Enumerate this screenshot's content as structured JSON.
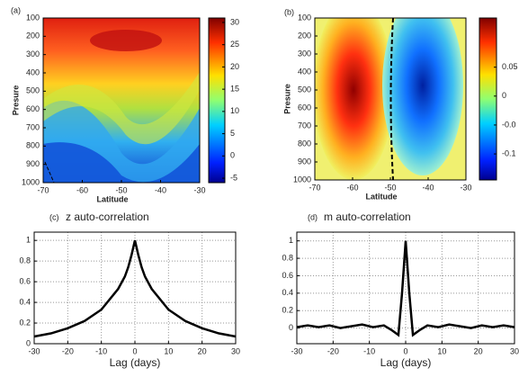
{
  "chart_data": [
    {
      "type": "contour",
      "panel_label": "(a)",
      "xlabel": "Latitude",
      "ylabel": "Presure",
      "xlim": [
        -70,
        -30
      ],
      "xticks": [
        -70,
        -60,
        -50,
        -40,
        -30
      ],
      "ylim": [
        1000,
        100
      ],
      "yticks": [
        100,
        200,
        300,
        400,
        500,
        600,
        700,
        800,
        900,
        1000
      ],
      "colorbar_lim": [
        -6,
        31
      ],
      "colorbar_ticks": [
        -5,
        0,
        5,
        10,
        15,
        20,
        25,
        30
      ]
    },
    {
      "type": "contour",
      "panel_label": "(b)",
      "xlabel": "Latitude",
      "ylabel": "Presure",
      "xlim": [
        -70,
        -30
      ],
      "xticks": [
        -70,
        -60,
        -50,
        -40,
        -30
      ],
      "ylim": [
        1000,
        100
      ],
      "yticks": [
        100,
        200,
        300,
        400,
        500,
        600,
        700,
        800,
        900,
        1000
      ],
      "colorbar_lim": [
        -0.145,
        0.135
      ],
      "colorbar_ticks": [
        0.05,
        0,
        {
          "value": -0.05,
          "label": "-0.0"
        },
        -0.1
      ]
    },
    {
      "type": "line",
      "panel_label": "(c)",
      "title": "z auto-correlation",
      "xlabel": "Lag (days)",
      "xlim": [
        -30,
        30
      ],
      "xticks": [
        -30,
        -20,
        -10,
        0,
        10,
        20,
        30
      ],
      "ylim": [
        0,
        1.08
      ],
      "yticks": [
        0,
        0.2,
        0.4,
        0.6,
        0.8,
        1
      ],
      "grid": true,
      "x": [
        -30,
        -25,
        -20,
        -15,
        -10,
        -5,
        -3,
        -2,
        -1,
        0,
        1,
        2,
        3,
        5,
        10,
        15,
        20,
        25,
        30
      ],
      "series": [
        {
          "color": "#000000",
          "values": [
            0.07,
            0.1,
            0.15,
            0.22,
            0.33,
            0.53,
            0.65,
            0.74,
            0.86,
            1,
            0.86,
            0.74,
            0.65,
            0.53,
            0.33,
            0.22,
            0.15,
            0.1,
            0.07
          ]
        }
      ]
    },
    {
      "type": "line",
      "panel_label": "(d)",
      "title": "m auto-correlation",
      "xlabel": "Lag (days)",
      "xlim": [
        -30,
        30
      ],
      "xticks": [
        -30,
        -20,
        -10,
        0,
        10,
        20,
        30
      ],
      "ylim": [
        -0.18,
        1.1
      ],
      "yticks": [
        0,
        0.2,
        0.4,
        0.6,
        0.8,
        1
      ],
      "grid": true,
      "x": [
        -30,
        -27,
        -24,
        -21,
        -18,
        -15,
        -12,
        -9,
        -6,
        -4,
        -2,
        -1,
        0,
        1,
        2,
        4,
        6,
        9,
        12,
        15,
        18,
        21,
        24,
        27,
        30
      ],
      "series": [
        {
          "color": "#000000",
          "values": [
            0.01,
            0.03,
            0.01,
            0.03,
            0.0,
            0.02,
            0.04,
            0.01,
            0.03,
            -0.02,
            -0.08,
            0.4,
            1,
            0.4,
            -0.08,
            -0.02,
            0.03,
            0.01,
            0.04,
            0.02,
            0.0,
            0.03,
            0.01,
            0.03,
            0.01
          ]
        }
      ]
    }
  ]
}
